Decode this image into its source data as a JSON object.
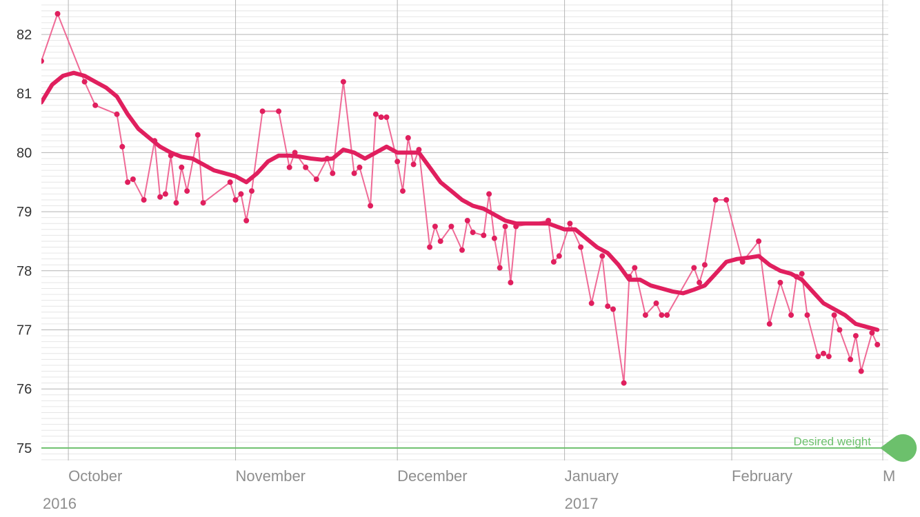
{
  "chart_data": {
    "type": "line",
    "y_ticks": [
      "75",
      "76",
      "77",
      "78",
      "79",
      "80",
      "81",
      "82"
    ],
    "ylim": [
      74.8,
      82.55
    ],
    "x_range": [
      "2016-09-26",
      "2017-03-01"
    ],
    "month_ticks": [
      {
        "date": "2016-10-01",
        "label": "October"
      },
      {
        "date": "2016-11-01",
        "label": "November"
      },
      {
        "date": "2016-12-01",
        "label": "December"
      },
      {
        "date": "2017-01-01",
        "label": "January"
      },
      {
        "date": "2017-02-01",
        "label": "February"
      },
      {
        "date": "2017-03-01",
        "label": "M"
      }
    ],
    "year_ticks": [
      {
        "date": "2016-09-26",
        "label": "2016"
      },
      {
        "date": "2017-01-01",
        "label": "2017"
      }
    ],
    "grid": true,
    "goal": {
      "label": "Desired weight",
      "value": 75,
      "color": "#6cc06c"
    },
    "colors": {
      "raw": "#ef6a96",
      "trend": "#e01f5e",
      "point": "#e01f5e"
    },
    "series": [
      {
        "points": [
          [
            "2016-09-26",
            81.55
          ],
          [
            "2016-09-29",
            82.35
          ],
          [
            "2016-10-04",
            81.2
          ],
          [
            "2016-10-06",
            80.8
          ],
          [
            "2016-10-10",
            80.65
          ],
          [
            "2016-10-11",
            80.1
          ],
          [
            "2016-10-12",
            79.5
          ],
          [
            "2016-10-13",
            79.55
          ],
          [
            "2016-10-15",
            79.2
          ],
          [
            "2016-10-17",
            80.2
          ],
          [
            "2016-10-18",
            79.25
          ],
          [
            "2016-10-19",
            79.3
          ],
          [
            "2016-10-20",
            79.95
          ],
          [
            "2016-10-21",
            79.15
          ],
          [
            "2016-10-22",
            79.75
          ],
          [
            "2016-10-23",
            79.35
          ],
          [
            "2016-10-25",
            80.3
          ],
          [
            "2016-10-26",
            79.15
          ],
          [
            "2016-10-31",
            79.5
          ],
          [
            "2016-11-01",
            79.2
          ],
          [
            "2016-11-02",
            79.3
          ],
          [
            "2016-11-03",
            78.85
          ],
          [
            "2016-11-04",
            79.35
          ],
          [
            "2016-11-06",
            80.7
          ],
          [
            "2016-11-09",
            80.7
          ],
          [
            "2016-11-11",
            79.75
          ],
          [
            "2016-11-12",
            80.0
          ],
          [
            "2016-11-14",
            79.75
          ],
          [
            "2016-11-16",
            79.55
          ],
          [
            "2016-11-18",
            79.9
          ],
          [
            "2016-11-19",
            79.65
          ],
          [
            "2016-11-21",
            81.2
          ],
          [
            "2016-11-23",
            79.65
          ],
          [
            "2016-11-24",
            79.75
          ],
          [
            "2016-11-26",
            79.1
          ],
          [
            "2016-11-27",
            80.65
          ],
          [
            "2016-11-28",
            80.6
          ],
          [
            "2016-11-29",
            80.6
          ],
          [
            "2016-12-01",
            79.85
          ],
          [
            "2016-12-02",
            79.35
          ],
          [
            "2016-12-03",
            80.25
          ],
          [
            "2016-12-04",
            79.8
          ],
          [
            "2016-12-05",
            80.05
          ],
          [
            "2016-12-07",
            78.4
          ],
          [
            "2016-12-08",
            78.75
          ],
          [
            "2016-12-09",
            78.5
          ],
          [
            "2016-12-11",
            78.75
          ],
          [
            "2016-12-13",
            78.35
          ],
          [
            "2016-12-14",
            78.85
          ],
          [
            "2016-12-15",
            78.65
          ],
          [
            "2016-12-17",
            78.6
          ],
          [
            "2016-12-18",
            79.3
          ],
          [
            "2016-12-19",
            78.55
          ],
          [
            "2016-12-20",
            78.05
          ],
          [
            "2016-12-21",
            78.75
          ],
          [
            "2016-12-22",
            77.8
          ],
          [
            "2016-12-23",
            78.75
          ],
          [
            "2016-12-29",
            78.85
          ],
          [
            "2016-12-30",
            78.15
          ],
          [
            "2016-12-31",
            78.25
          ],
          [
            "2017-01-02",
            78.8
          ],
          [
            "2017-01-04",
            78.4
          ],
          [
            "2017-01-06",
            77.45
          ],
          [
            "2017-01-08",
            78.25
          ],
          [
            "2017-01-09",
            77.4
          ],
          [
            "2017-01-10",
            77.35
          ],
          [
            "2017-01-12",
            76.1
          ],
          [
            "2017-01-13",
            77.9
          ],
          [
            "2017-01-14",
            78.05
          ],
          [
            "2017-01-16",
            77.25
          ],
          [
            "2017-01-18",
            77.45
          ],
          [
            "2017-01-19",
            77.25
          ],
          [
            "2017-01-20",
            77.25
          ],
          [
            "2017-01-25",
            78.05
          ],
          [
            "2017-01-26",
            77.8
          ],
          [
            "2017-01-27",
            78.1
          ],
          [
            "2017-01-29",
            79.2
          ],
          [
            "2017-01-31",
            79.2
          ],
          [
            "2017-02-03",
            78.15
          ],
          [
            "2017-02-06",
            78.5
          ],
          [
            "2017-02-08",
            77.1
          ],
          [
            "2017-02-10",
            77.8
          ],
          [
            "2017-02-12",
            77.25
          ],
          [
            "2017-02-13",
            77.9
          ],
          [
            "2017-02-14",
            77.95
          ],
          [
            "2017-02-15",
            77.25
          ],
          [
            "2017-02-17",
            76.55
          ],
          [
            "2017-02-18",
            76.6
          ],
          [
            "2017-02-19",
            76.55
          ],
          [
            "2017-02-20",
            77.25
          ],
          [
            "2017-02-21",
            77.0
          ],
          [
            "2017-02-23",
            76.5
          ],
          [
            "2017-02-24",
            76.9
          ],
          [
            "2017-02-25",
            76.3
          ],
          [
            "2017-02-27",
            76.95
          ],
          [
            "2017-02-28",
            76.75
          ]
        ]
      },
      {
        "points": [
          [
            "2016-09-26",
            80.85
          ],
          [
            "2016-09-28",
            81.15
          ],
          [
            "2016-09-30",
            81.3
          ],
          [
            "2016-10-02",
            81.35
          ],
          [
            "2016-10-04",
            81.3
          ],
          [
            "2016-10-06",
            81.2
          ],
          [
            "2016-10-08",
            81.1
          ],
          [
            "2016-10-10",
            80.95
          ],
          [
            "2016-10-12",
            80.65
          ],
          [
            "2016-10-14",
            80.4
          ],
          [
            "2016-10-16",
            80.25
          ],
          [
            "2016-10-18",
            80.1
          ],
          [
            "2016-10-20",
            80.0
          ],
          [
            "2016-10-22",
            79.93
          ],
          [
            "2016-10-24",
            79.9
          ],
          [
            "2016-10-26",
            79.8
          ],
          [
            "2016-10-28",
            79.7
          ],
          [
            "2016-10-30",
            79.65
          ],
          [
            "2016-11-01",
            79.6
          ],
          [
            "2016-11-03",
            79.5
          ],
          [
            "2016-11-05",
            79.65
          ],
          [
            "2016-11-07",
            79.85
          ],
          [
            "2016-11-09",
            79.95
          ],
          [
            "2016-11-11",
            79.95
          ],
          [
            "2016-11-13",
            79.93
          ],
          [
            "2016-11-15",
            79.9
          ],
          [
            "2016-11-17",
            79.88
          ],
          [
            "2016-11-19",
            79.9
          ],
          [
            "2016-11-21",
            80.05
          ],
          [
            "2016-11-23",
            80.0
          ],
          [
            "2016-11-25",
            79.9
          ],
          [
            "2016-11-27",
            80.0
          ],
          [
            "2016-11-29",
            80.1
          ],
          [
            "2016-12-01",
            80.0
          ],
          [
            "2016-12-03",
            80.0
          ],
          [
            "2016-12-05",
            80.0
          ],
          [
            "2016-12-07",
            79.75
          ],
          [
            "2016-12-09",
            79.5
          ],
          [
            "2016-12-11",
            79.35
          ],
          [
            "2016-12-13",
            79.2
          ],
          [
            "2016-12-15",
            79.1
          ],
          [
            "2016-12-17",
            79.05
          ],
          [
            "2016-12-19",
            78.95
          ],
          [
            "2016-12-21",
            78.85
          ],
          [
            "2016-12-23",
            78.8
          ],
          [
            "2016-12-26",
            78.8
          ],
          [
            "2016-12-29",
            78.8
          ],
          [
            "2017-01-01",
            78.7
          ],
          [
            "2017-01-03",
            78.7
          ],
          [
            "2017-01-05",
            78.55
          ],
          [
            "2017-01-07",
            78.4
          ],
          [
            "2017-01-09",
            78.3
          ],
          [
            "2017-01-11",
            78.1
          ],
          [
            "2017-01-13",
            77.85
          ],
          [
            "2017-01-15",
            77.85
          ],
          [
            "2017-01-17",
            77.75
          ],
          [
            "2017-01-19",
            77.7
          ],
          [
            "2017-01-21",
            77.65
          ],
          [
            "2017-01-23",
            77.62
          ],
          [
            "2017-01-25",
            77.68
          ],
          [
            "2017-01-27",
            77.75
          ],
          [
            "2017-01-29",
            77.95
          ],
          [
            "2017-01-31",
            78.15
          ],
          [
            "2017-02-02",
            78.2
          ],
          [
            "2017-02-04",
            78.22
          ],
          [
            "2017-02-06",
            78.25
          ],
          [
            "2017-02-08",
            78.1
          ],
          [
            "2017-02-10",
            78.0
          ],
          [
            "2017-02-12",
            77.95
          ],
          [
            "2017-02-14",
            77.85
          ],
          [
            "2017-02-16",
            77.65
          ],
          [
            "2017-02-18",
            77.45
          ],
          [
            "2017-02-20",
            77.35
          ],
          [
            "2017-02-22",
            77.25
          ],
          [
            "2017-02-24",
            77.1
          ],
          [
            "2017-02-26",
            77.05
          ],
          [
            "2017-02-28",
            77.0
          ]
        ]
      }
    ]
  }
}
